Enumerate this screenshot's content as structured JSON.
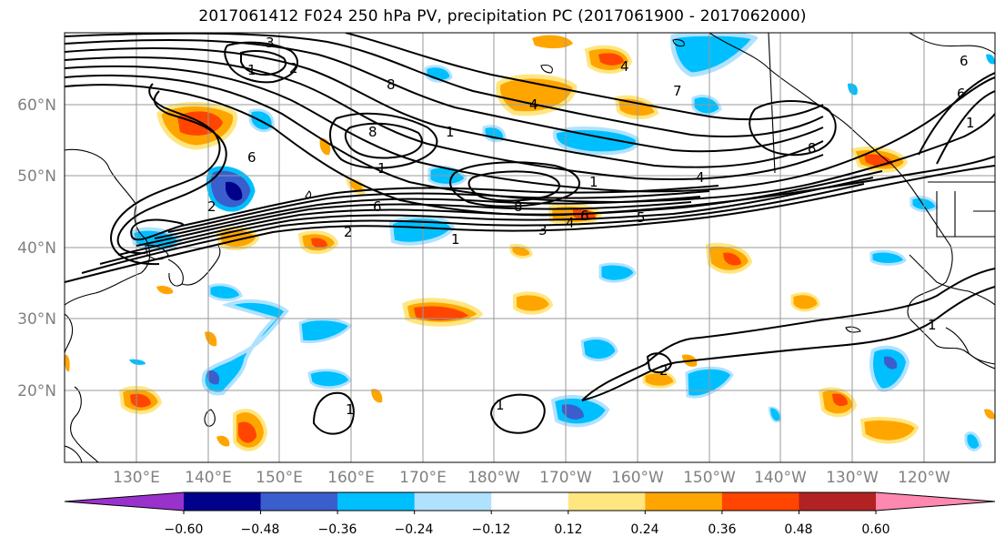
{
  "title": "2017061412 F024 250 hPa PV, precipitation PC (2017061900 - 2017062000)",
  "lat_labels": [
    "60°N",
    "50°N",
    "40°N",
    "30°N",
    "20°N"
  ],
  "lon_labels": [
    "130°E",
    "140°E",
    "150°E",
    "160°E",
    "170°E",
    "180°W",
    "170°W",
    "160°W",
    "150°W",
    "140°W",
    "130°W",
    "120°W"
  ],
  "colorbar": {
    "tick_labels": [
      "−0.60",
      "−0.48",
      "−0.36",
      "−0.24",
      "−0.12",
      "0.12",
      "0.24",
      "0.36",
      "0.48",
      "0.60"
    ],
    "colors": [
      "#9932cc",
      "#00008b",
      "#3a5fcd",
      "#00bfff",
      "#b0e2ff",
      "#ffffff",
      "#ffe680",
      "#ffa500",
      "#ff4500",
      "#b22222",
      "#ff88b0"
    ]
  },
  "contour_labels": [
    "3",
    "1",
    "2",
    "4",
    "6",
    "8",
    "1",
    "4",
    "6",
    "2",
    "8",
    "1",
    "6",
    "1",
    "4",
    "5",
    "3",
    "1",
    "2",
    "6",
    "7",
    "8",
    "1",
    "2",
    "1",
    "1",
    "6",
    "4",
    "1",
    "8"
  ]
}
